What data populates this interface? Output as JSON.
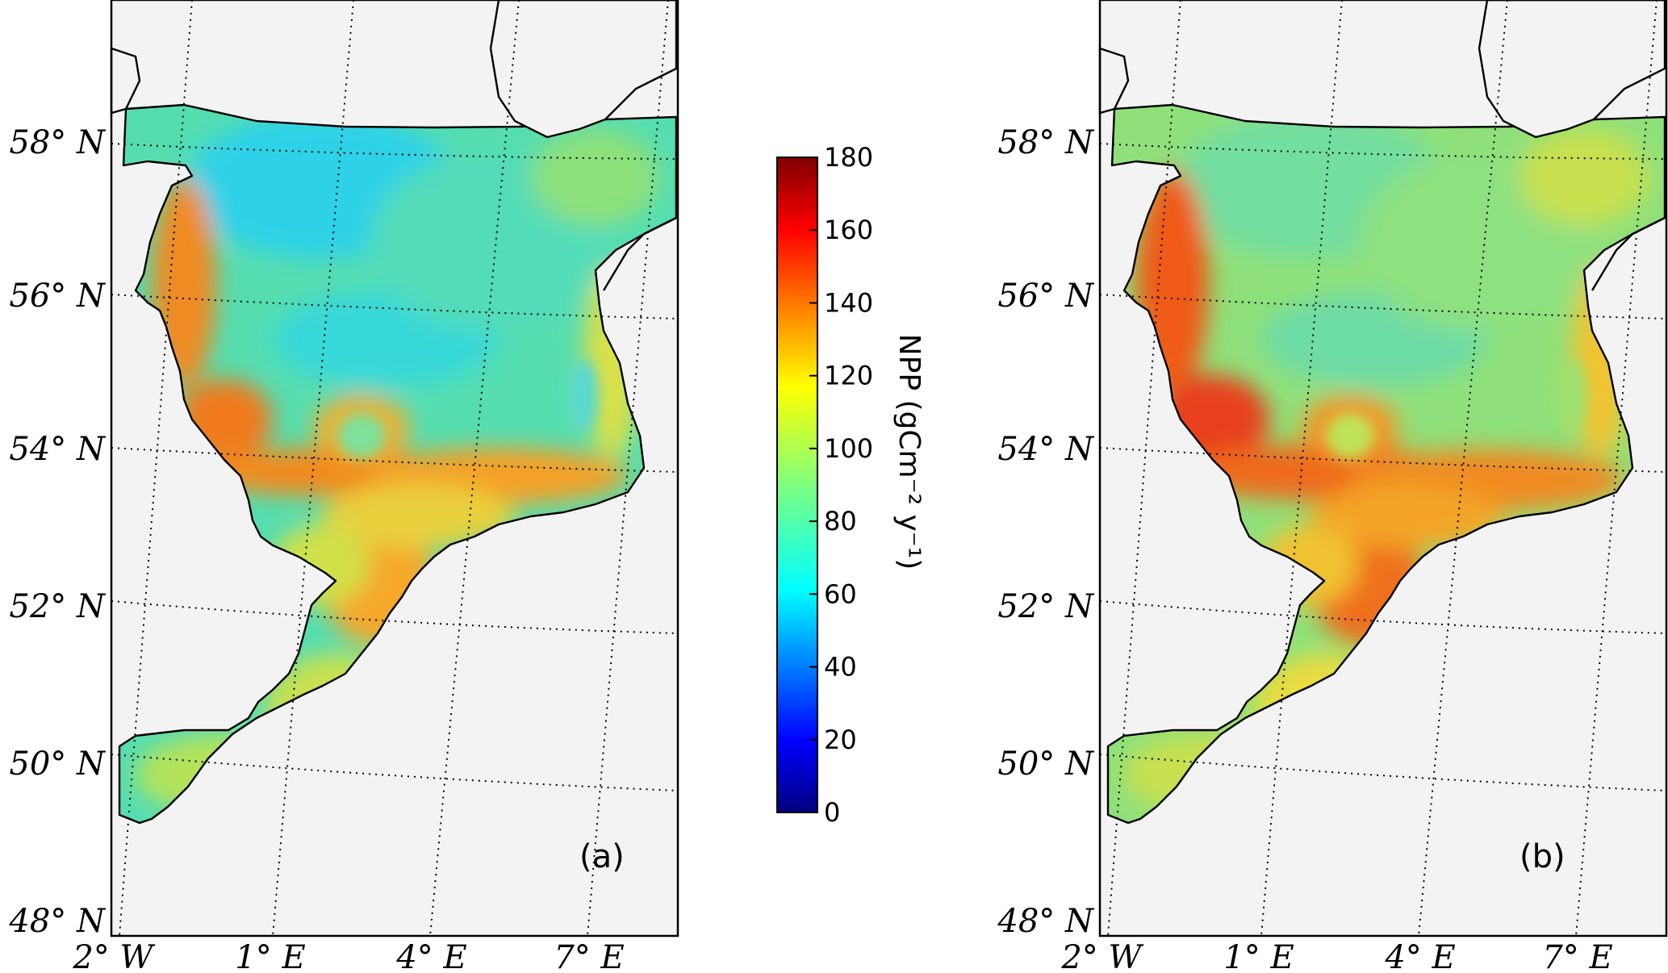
{
  "panels": [
    {
      "id": "a",
      "label": "(a)"
    },
    {
      "id": "b",
      "label": "(b)"
    }
  ],
  "lat_ticks": [
    "58° N",
    "56° N",
    "54° N",
    "52° N",
    "50° N",
    "48° N"
  ],
  "lon_ticks": [
    "2° W",
    "1° E",
    "4° E",
    "7° E"
  ],
  "colorbar": {
    "label": "NPP (gCm⁻² y⁻¹)",
    "min": 0,
    "max": 180,
    "ticks": [
      "0",
      "20",
      "40",
      "60",
      "80",
      "100",
      "120",
      "140",
      "160",
      "180"
    ],
    "colormap": "jet",
    "stops": [
      "#00007f",
      "#0000ff",
      "#007fff",
      "#00ffff",
      "#7fff7f",
      "#ffff00",
      "#ff7f00",
      "#ff0000",
      "#7f0000"
    ]
  },
  "colors": {
    "land": "#f3f3f3",
    "offshore_a": "#36d6cf",
    "offshore_b": "#8fe07a",
    "coastal_a": "#f57c1d",
    "coastal_b": "#e8351a"
  }
}
